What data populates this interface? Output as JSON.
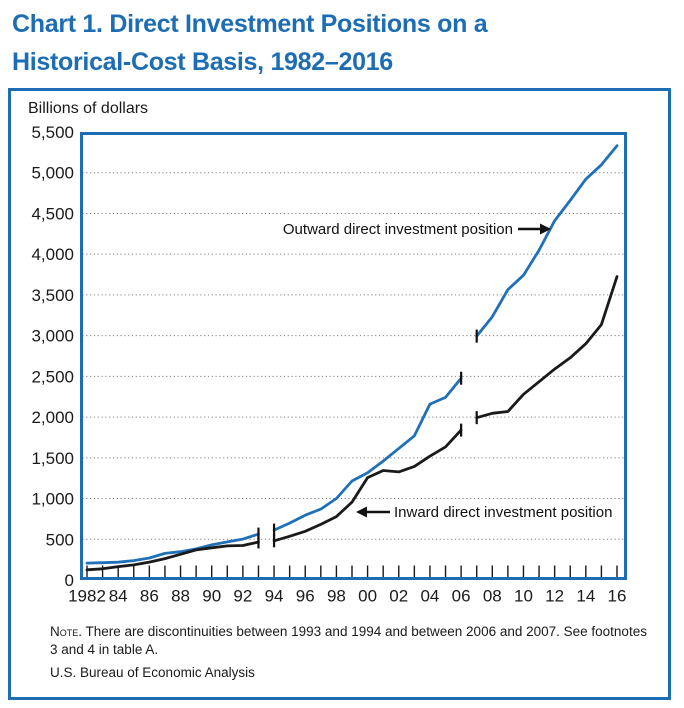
{
  "title": {
    "line1": "Chart 1. Direct Investment Positions on a",
    "line2": "Historical-Cost Basis, 1982–2016"
  },
  "chart": {
    "units_label": "Billions of dollars",
    "notes": {
      "prefix": "Note.",
      "line1": " There are discontinuities between 1993 and 1994 and between 2006 and 2007.  See footnotes",
      "line2": "3 and 4 in table A.",
      "source": "U.S. Bureau of Economic Analysis"
    }
  },
  "colors": {
    "accent_blue": "#1d6db4",
    "outward_line": "#2070b8",
    "inward_line": "#1a1a1a",
    "gridline": "#808080"
  },
  "chart_data": {
    "type": "line",
    "title": "Chart 1. Direct Investment Positions on a Historical-Cost Basis, 1982–2016",
    "ylabel": "Billions of dollars",
    "xlabel": "",
    "ylim": [
      0,
      5500
    ],
    "ytick_interval": 500,
    "ytick_labels": [
      "0",
      "500",
      "1,000",
      "1,500",
      "2,000",
      "2,500",
      "3,000",
      "3,500",
      "4,000",
      "4,500",
      "5,000",
      "5,500"
    ],
    "grid": "horizontal-dotted",
    "legend_position": "in-plot annotations with arrows",
    "x": [
      1982,
      1983,
      1984,
      1985,
      1986,
      1987,
      1988,
      1989,
      1990,
      1991,
      1992,
      1993,
      1994,
      1995,
      1996,
      1997,
      1998,
      1999,
      2000,
      2001,
      2002,
      2003,
      2004,
      2005,
      2006,
      2007,
      2008,
      2009,
      2010,
      2011,
      2012,
      2013,
      2014,
      2015,
      2016
    ],
    "xtick_labels": [
      "1982",
      "84",
      "86",
      "88",
      "90",
      "92",
      "94",
      "96",
      "98",
      "00",
      "02",
      "04",
      "06",
      "08",
      "10",
      "12",
      "14",
      "16"
    ],
    "discontinuities": [
      [
        1993,
        1994
      ],
      [
        2006,
        2007
      ]
    ],
    "series": [
      {
        "name": "Outward direct investment position",
        "color": "#2070b8",
        "values": [
          208,
          212,
          218,
          238,
          270,
          326,
          347,
          382,
          431,
          468,
          502,
          564,
          613,
          699,
          795,
          871,
          1001,
          1216,
          1316,
          1460,
          1616,
          1770,
          2160,
          2242,
          2477,
          2994,
          3232,
          3565,
          3742,
          4050,
          4410,
          4660,
          4921,
          5097,
          5332
        ]
      },
      {
        "name": "Inward direct investment position",
        "color": "#1a1a1a",
        "values": [
          125,
          137,
          165,
          185,
          220,
          263,
          315,
          369,
          395,
          419,
          423,
          467,
          481,
          536,
          598,
          682,
          778,
          956,
          1257,
          1344,
          1327,
          1395,
          1520,
          1634,
          1840,
          1993,
          2047,
          2069,
          2280,
          2434,
          2589,
          2728,
          2901,
          3135,
          3725
        ]
      }
    ]
  }
}
